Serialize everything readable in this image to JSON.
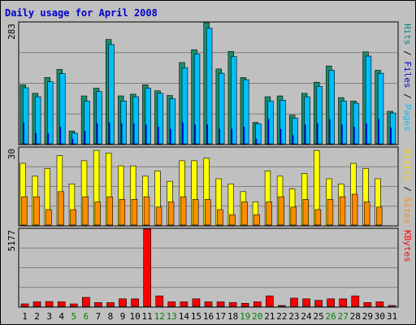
{
  "chart_data": {
    "type": "bar",
    "title": "Daily usage for April 2008",
    "categories": [
      "1",
      "2",
      "3",
      "4",
      "5",
      "6",
      "7",
      "8",
      "9",
      "10",
      "11",
      "12",
      "13",
      "14",
      "15",
      "16",
      "17",
      "18",
      "19",
      "20",
      "21",
      "22",
      "23",
      "24",
      "25",
      "26",
      "27",
      "28",
      "29",
      "30",
      "31"
    ],
    "weekend_days": [
      "5",
      "6",
      "12",
      "13",
      "19",
      "20",
      "26",
      "27"
    ],
    "panels": [
      {
        "name": "hits_files_pages",
        "max_label": "283",
        "ylim": [
          0,
          283
        ],
        "legend": [
          {
            "text": "Pages",
            "color": "#00bfff"
          },
          {
            "text": " / ",
            "color": "#000000"
          },
          {
            "text": "Files",
            "color": "#0000cc"
          },
          {
            "text": " / ",
            "color": "#000000"
          },
          {
            "text": "Hits",
            "color": "#008080"
          }
        ],
        "series": [
          {
            "name": "Hits",
            "color": "#1a8c6c",
            "values": [
              138,
              118,
              155,
              174,
              30,
              112,
              130,
              244,
              112,
              116,
              138,
              124,
              113,
              190,
              220,
              283,
              175,
              216,
              155,
              50,
              110,
              112,
              67,
              118,
              144,
              182,
              108,
              100,
              215,
              172,
              76
            ]
          },
          {
            "name": "Files",
            "color": "#00bfff",
            "values": [
              131,
              110,
              145,
              164,
              25,
              100,
              122,
              232,
              100,
              110,
              130,
              118,
              105,
              178,
              210,
              270,
              165,
              204,
              150,
              47,
              100,
              102,
              60,
              110,
              134,
              172,
              100,
              95,
              205,
              165,
              72
            ]
          },
          {
            "name": "Pages",
            "color": "#0000cc",
            "values": [
              50,
              25,
              25,
              40,
              12,
              30,
              48,
              50,
              48,
              48,
              45,
              40,
              35,
              50,
              45,
              45,
              35,
              35,
              40,
              12,
              58,
              35,
              20,
              45,
              48,
              58,
              45,
              40,
              48,
              58,
              38
            ]
          }
        ]
      },
      {
        "name": "visits_sites",
        "max_label": "30",
        "ylim": [
          0,
          30
        ],
        "legend": [
          {
            "text": "Sites",
            "color": "#ff8c00"
          },
          {
            "text": " / ",
            "color": "#000000"
          },
          {
            "text": "Visits",
            "color": "#ffd700"
          }
        ],
        "series": [
          {
            "name": "Visits",
            "color": "#ffff00",
            "values": [
              24,
              19,
              22,
              27,
              16,
              25,
              29,
              28,
              23,
              23,
              19,
              21,
              17,
              25,
              25,
              26,
              18,
              16,
              13,
              9,
              21,
              19,
              14,
              20,
              29,
              18,
              16,
              24,
              22,
              18,
              0
            ]
          },
          {
            "name": "Sites",
            "color": "#ff8c00",
            "values": [
              11,
              11,
              6,
              13,
              6,
              11,
              9,
              11,
              10,
              10,
              11,
              7,
              9,
              11,
              10,
              10,
              6,
              4,
              9,
              4,
              9,
              11,
              7,
              10,
              6,
              10,
              11,
              12,
              9,
              7,
              0
            ]
          }
        ]
      },
      {
        "name": "kbytes",
        "max_label": "5177",
        "ylim": [
          0,
          5177
        ],
        "legend": [
          {
            "text": "KBytes",
            "color": "#ff0000"
          }
        ],
        "series": [
          {
            "name": "KBytes",
            "color": "#ff0000",
            "values": [
              160,
              300,
              320,
              300,
              150,
              600,
              250,
              250,
              500,
              500,
              5177,
              700,
              300,
              300,
              500,
              300,
              300,
              250,
              200,
              300,
              700,
              0,
              550,
              500,
              400,
              500,
              500,
              700,
              250,
              300,
              0
            ]
          }
        ]
      }
    ]
  }
}
